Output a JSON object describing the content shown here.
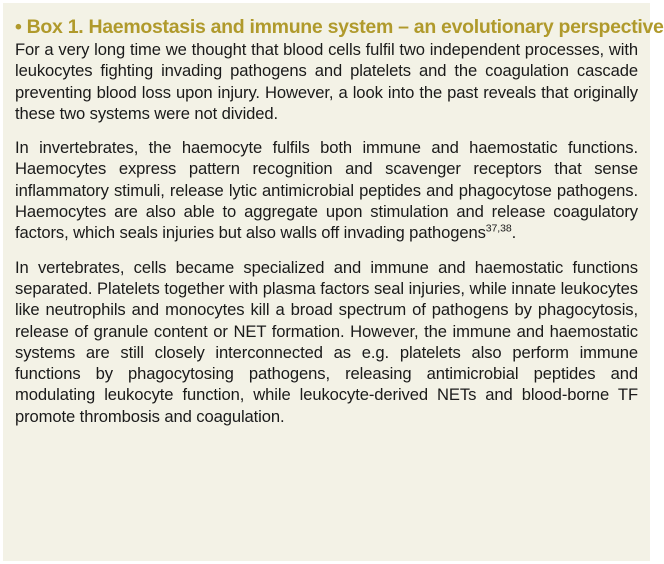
{
  "box": {
    "title": "• Box 1. Haemostasis and immune system – an evolutionary perspective",
    "paragraphs": [
      {
        "text": "For a very long time we thought that blood cells fulfil two independent processes, with leukocytes fighting invading pathogens and platelets and the coagulation cascade preventing blood loss upon injury. However, a look into the past reveals that originally these two systems were not divided."
      },
      {
        "text": "In invertebrates, the haemocyte fulfils both immune and haemostatic functions. Haemocytes express pattern recognition and scavenger receptors that sense inflammatory stimuli, release lytic antimicrobial peptides and phagocytose pathogens. Haemocytes are also able to aggregate upon stimulation and release coagulatory factors, which seals injuries but also walls off invading pathogens",
        "ref": "37,38",
        "after_ref": "."
      },
      {
        "text": "In vertebrates, cells became specialized and immune and haemostatic functions separated. Platelets together with plasma factors seal injuries, while innate leukocytes like neutrophils and monocytes kill a broad spectrum of pathogens by phagocytosis, release of granule content or NET formation. However, the immune and haemostatic systems are still closely interconnected as e.g. platelets also perform immune functions by phagocytosing pathogens, releasing antimicrobial peptides and modulating leukocyte function, while leukocyte-derived NETs and blood-borne TF promote thrombosis and coagulation."
      }
    ]
  },
  "colors": {
    "box_background": "#f3f2e6",
    "title_color": "#b09a2c",
    "text_color": "#1a1a1a"
  }
}
